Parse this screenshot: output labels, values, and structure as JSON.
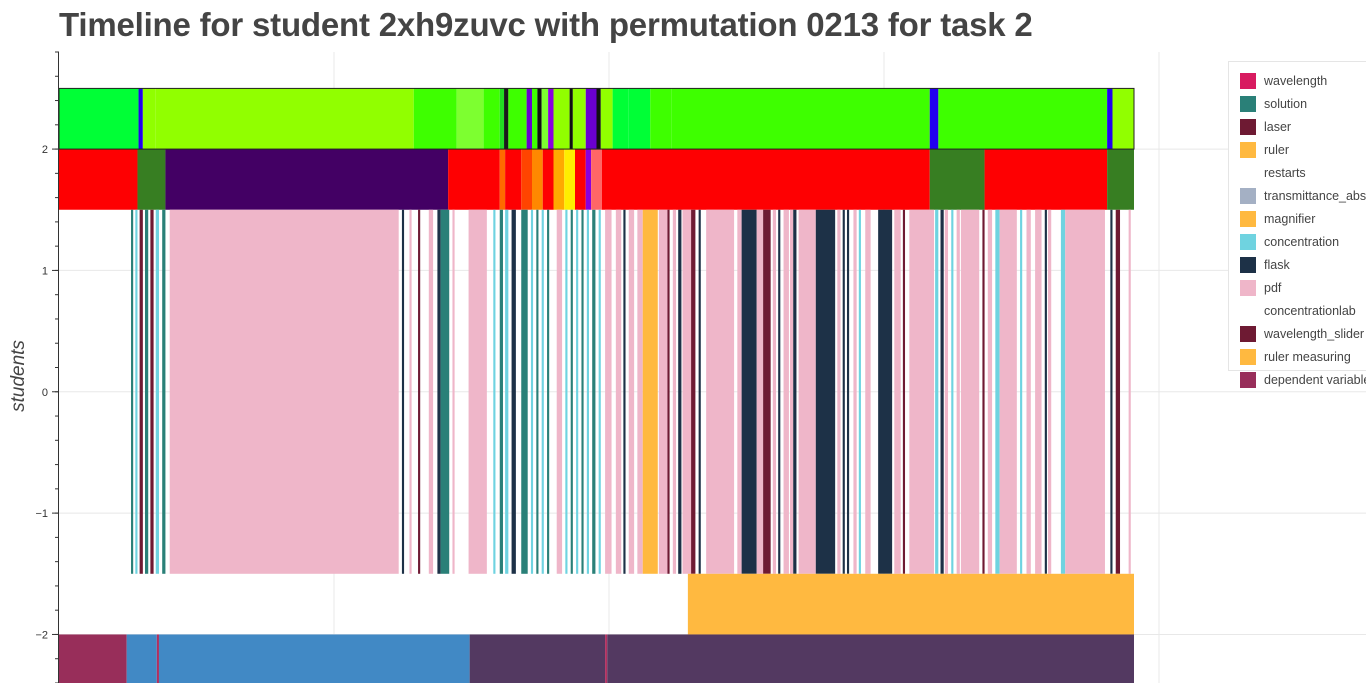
{
  "title": "Timeline for student 2xh9zuvc with permutation 0213 for task 2",
  "chart_data": {
    "type": "timeline",
    "title": "Timeline for student 2xh9zuvc with permutation 0213 for task 2",
    "xlabel": "",
    "ylabel": "students",
    "x_range": [
      0,
      100
    ],
    "ylim": [
      -2.4,
      2.8
    ],
    "y_ticks": [
      {
        "value": 2,
        "label": "2"
      },
      {
        "value": 1,
        "label": "1"
      },
      {
        "value": 0,
        "label": "0"
      },
      {
        "value": -1,
        "label": "−1"
      },
      {
        "value": -2,
        "label": "−2"
      }
    ],
    "grid": true,
    "legend_position": "right",
    "legend": [
      {
        "label": "wavelength",
        "color": "#d81b60"
      },
      {
        "label": "solution",
        "color": "#2a8078"
      },
      {
        "label": "laser",
        "color": "#6e1a33"
      },
      {
        "label": "ruler",
        "color": "#ffb940"
      },
      {
        "label": "restarts",
        "color": "#ffffff"
      },
      {
        "label": "transmittance_abs",
        "color": "#a4b0c4"
      },
      {
        "label": "magnifier",
        "color": "#ffb940"
      },
      {
        "label": "concentration",
        "color": "#6fd3e0"
      },
      {
        "label": "flask",
        "color": "#1d3147"
      },
      {
        "label": "pdf",
        "color": "#efb6c9"
      },
      {
        "label": "concentrationlab",
        "color": "#ffffff"
      },
      {
        "label": "wavelength_slider",
        "color": "#6e1a33"
      },
      {
        "label": "ruler measuring",
        "color": "#ffb940"
      },
      {
        "label": "dependent variable",
        "color": "#982e5a"
      }
    ],
    "rows": [
      {
        "y": [
          2,
          2.5
        ],
        "segments": [
          {
            "start": 0,
            "end": 7.4,
            "color": "#00ff36"
          },
          {
            "start": 7.4,
            "end": 7.8,
            "color": "#2200ee"
          },
          {
            "start": 7.8,
            "end": 9.0,
            "color": "#90ff00"
          },
          {
            "start": 9.0,
            "end": 33.0,
            "color": "#91ff00"
          },
          {
            "start": 33.0,
            "end": 37.0,
            "color": "#3eff00"
          },
          {
            "start": 37.0,
            "end": 39.5,
            "color": "#7dff30"
          },
          {
            "start": 39.5,
            "end": 41.0,
            "color": "#3eff00"
          },
          {
            "start": 41.0,
            "end": 41.4,
            "color": "#22dd22"
          },
          {
            "start": 41.4,
            "end": 41.8,
            "color": "#1a1a1a"
          },
          {
            "start": 41.8,
            "end": 43.5,
            "color": "#3eff00"
          },
          {
            "start": 43.5,
            "end": 44.0,
            "color": "#6a00d0"
          },
          {
            "start": 44.0,
            "end": 44.5,
            "color": "#3eff00"
          },
          {
            "start": 44.5,
            "end": 44.9,
            "color": "#111111"
          },
          {
            "start": 44.9,
            "end": 45.5,
            "color": "#7dff30"
          },
          {
            "start": 45.5,
            "end": 46.0,
            "color": "#8a00dd"
          },
          {
            "start": 46.0,
            "end": 47.5,
            "color": "#91ff00"
          },
          {
            "start": 47.5,
            "end": 47.8,
            "color": "#111111"
          },
          {
            "start": 47.8,
            "end": 49.0,
            "color": "#91ff00"
          },
          {
            "start": 49.0,
            "end": 50.0,
            "color": "#6a00d0"
          },
          {
            "start": 50.0,
            "end": 50.4,
            "color": "#111111"
          },
          {
            "start": 50.4,
            "end": 51.5,
            "color": "#91ff00"
          },
          {
            "start": 51.5,
            "end": 53.0,
            "color": "#00ff36"
          },
          {
            "start": 53.0,
            "end": 55.0,
            "color": "#00ff36"
          },
          {
            "start": 55.0,
            "end": 57.0,
            "color": "#3eff00"
          },
          {
            "start": 57.0,
            "end": 81.0,
            "color": "#3eff00"
          },
          {
            "start": 81.0,
            "end": 81.8,
            "color": "#2200ee"
          },
          {
            "start": 81.8,
            "end": 86.0,
            "color": "#3eff00"
          },
          {
            "start": 86.0,
            "end": 97.5,
            "color": "#3eff00"
          },
          {
            "start": 97.5,
            "end": 98.0,
            "color": "#2200ee"
          },
          {
            "start": 98.0,
            "end": 100,
            "color": "#91ff00"
          }
        ]
      },
      {
        "y": [
          1.5,
          2
        ],
        "segments": [
          {
            "start": 0,
            "end": 7.3,
            "color": "#fe0002"
          },
          {
            "start": 7.3,
            "end": 9.9,
            "color": "#377e22"
          },
          {
            "start": 9.9,
            "end": 36.2,
            "color": "#430064"
          },
          {
            "start": 36.2,
            "end": 41.0,
            "color": "#fe0002"
          },
          {
            "start": 41.0,
            "end": 41.5,
            "color": "#ff6a00"
          },
          {
            "start": 41.5,
            "end": 43.0,
            "color": "#fe0002"
          },
          {
            "start": 43.0,
            "end": 44.0,
            "color": "#ff4400"
          },
          {
            "start": 44.0,
            "end": 45.0,
            "color": "#ff8800"
          },
          {
            "start": 45.0,
            "end": 46.0,
            "color": "#fe0002"
          },
          {
            "start": 46.0,
            "end": 47.0,
            "color": "#ffaa00"
          },
          {
            "start": 47.0,
            "end": 48.0,
            "color": "#ffee00"
          },
          {
            "start": 48.0,
            "end": 49.0,
            "color": "#fe0002"
          },
          {
            "start": 49.0,
            "end": 49.5,
            "color": "#8a00dd"
          },
          {
            "start": 49.5,
            "end": 50.5,
            "color": "#ff6666"
          },
          {
            "start": 50.5,
            "end": 81.0,
            "color": "#fe0002"
          },
          {
            "start": 81.0,
            "end": 86.1,
            "color": "#377e22"
          },
          {
            "start": 86.1,
            "end": 97.5,
            "color": "#fe0002"
          },
          {
            "start": 97.5,
            "end": 100,
            "color": "#377e22"
          }
        ]
      },
      {
        "y": [
          -1.5,
          1.5
        ],
        "segments": [
          {
            "start": 6.7,
            "end": 6.9,
            "color": "#2a8078"
          },
          {
            "start": 7.1,
            "end": 7.3,
            "color": "#6fd3e0"
          },
          {
            "start": 7.5,
            "end": 7.8,
            "color": "#6e1a33"
          },
          {
            "start": 8.0,
            "end": 8.3,
            "color": "#2a8078"
          },
          {
            "start": 8.5,
            "end": 8.8,
            "color": "#6e1a33"
          },
          {
            "start": 9.0,
            "end": 9.3,
            "color": "#6fd3e0"
          },
          {
            "start": 9.6,
            "end": 9.9,
            "color": "#2a8078"
          },
          {
            "start": 10.3,
            "end": 31.6,
            "color": "#efb6c9"
          },
          {
            "start": 31.9,
            "end": 32.1,
            "color": "#1d3147"
          },
          {
            "start": 32.6,
            "end": 32.8,
            "color": "#efb6c9"
          },
          {
            "start": 33.4,
            "end": 33.6,
            "color": "#6e1a33"
          },
          {
            "start": 34.4,
            "end": 34.8,
            "color": "#efb6c9"
          },
          {
            "start": 35.2,
            "end": 35.5,
            "color": "#1d3147"
          },
          {
            "start": 35.5,
            "end": 36.3,
            "color": "#2a8078"
          },
          {
            "start": 36.6,
            "end": 36.8,
            "color": "#efb6c9"
          },
          {
            "start": 38.1,
            "end": 39.8,
            "color": "#efb6c9"
          },
          {
            "start": 40.4,
            "end": 40.6,
            "color": "#6fd3e0"
          },
          {
            "start": 41.0,
            "end": 41.3,
            "color": "#2a8078"
          },
          {
            "start": 41.5,
            "end": 41.8,
            "color": "#6fd3e0"
          },
          {
            "start": 42.1,
            "end": 42.5,
            "color": "#1d3147"
          },
          {
            "start": 43.0,
            "end": 43.6,
            "color": "#2a8078"
          },
          {
            "start": 43.9,
            "end": 44.1,
            "color": "#6fd3e0"
          },
          {
            "start": 44.4,
            "end": 44.6,
            "color": "#2a8078"
          },
          {
            "start": 44.9,
            "end": 45.1,
            "color": "#6fd3e0"
          },
          {
            "start": 45.4,
            "end": 45.6,
            "color": "#2a8078"
          },
          {
            "start": 46.3,
            "end": 46.8,
            "color": "#efb6c9"
          },
          {
            "start": 47.1,
            "end": 47.3,
            "color": "#6fd3e0"
          },
          {
            "start": 47.6,
            "end": 47.8,
            "color": "#2a8078"
          },
          {
            "start": 48.1,
            "end": 48.3,
            "color": "#6fd3e0"
          },
          {
            "start": 48.6,
            "end": 48.8,
            "color": "#2a8078"
          },
          {
            "start": 49.1,
            "end": 49.3,
            "color": "#6fd3e0"
          },
          {
            "start": 49.6,
            "end": 49.9,
            "color": "#2a8078"
          },
          {
            "start": 50.2,
            "end": 50.4,
            "color": "#6fd3e0"
          },
          {
            "start": 50.8,
            "end": 51.4,
            "color": "#efb6c9"
          },
          {
            "start": 51.8,
            "end": 52.3,
            "color": "#efb6c9"
          },
          {
            "start": 52.5,
            "end": 52.7,
            "color": "#1d3147"
          },
          {
            "start": 53.0,
            "end": 53.5,
            "color": "#efb6c9"
          },
          {
            "start": 53.8,
            "end": 54.3,
            "color": "#efb6c9"
          },
          {
            "start": 54.3,
            "end": 55.7,
            "color": "#ffb940"
          },
          {
            "start": 55.8,
            "end": 56.6,
            "color": "#efb6c9"
          },
          {
            "start": 56.6,
            "end": 56.8,
            "color": "#6e1a33"
          },
          {
            "start": 57.1,
            "end": 57.4,
            "color": "#efb6c9"
          },
          {
            "start": 57.6,
            "end": 57.9,
            "color": "#1d3147"
          },
          {
            "start": 58.0,
            "end": 58.8,
            "color": "#efb6c9"
          },
          {
            "start": 58.8,
            "end": 59.2,
            "color": "#6e1a33"
          },
          {
            "start": 59.5,
            "end": 59.7,
            "color": "#1d3147"
          },
          {
            "start": 60.2,
            "end": 62.8,
            "color": "#efb6c9"
          },
          {
            "start": 63.1,
            "end": 63.5,
            "color": "#efb6c9"
          },
          {
            "start": 63.5,
            "end": 64.9,
            "color": "#1d3147"
          },
          {
            "start": 64.9,
            "end": 65.5,
            "color": "#efb6c9"
          },
          {
            "start": 65.5,
            "end": 66.2,
            "color": "#6e1a33"
          },
          {
            "start": 66.4,
            "end": 66.7,
            "color": "#efb6c9"
          },
          {
            "start": 66.9,
            "end": 67.1,
            "color": "#1d3147"
          },
          {
            "start": 67.4,
            "end": 67.9,
            "color": "#efb6c9"
          },
          {
            "start": 68.0,
            "end": 68.3,
            "color": "#efb6c9"
          },
          {
            "start": 68.3,
            "end": 68.6,
            "color": "#1d3147"
          },
          {
            "start": 68.8,
            "end": 70.4,
            "color": "#efb6c9"
          },
          {
            "start": 70.4,
            "end": 72.2,
            "color": "#1d3147"
          },
          {
            "start": 72.4,
            "end": 72.7,
            "color": "#efb6c9"
          },
          {
            "start": 72.9,
            "end": 73.1,
            "color": "#1d3147"
          },
          {
            "start": 73.3,
            "end": 73.5,
            "color": "#1d3147"
          },
          {
            "start": 73.9,
            "end": 74.2,
            "color": "#efb6c9"
          },
          {
            "start": 74.4,
            "end": 74.6,
            "color": "#6fd3e0"
          },
          {
            "start": 75.0,
            "end": 75.5,
            "color": "#efb6c9"
          },
          {
            "start": 76.2,
            "end": 77.5,
            "color": "#1d3147"
          },
          {
            "start": 77.7,
            "end": 78.3,
            "color": "#efb6c9"
          },
          {
            "start": 78.5,
            "end": 78.7,
            "color": "#6e1a33"
          },
          {
            "start": 79.1,
            "end": 81.4,
            "color": "#efb6c9"
          },
          {
            "start": 81.5,
            "end": 81.8,
            "color": "#6fd3e0"
          },
          {
            "start": 82.0,
            "end": 82.3,
            "color": "#1d3147"
          },
          {
            "start": 82.4,
            "end": 82.7,
            "color": "#efb6c9"
          },
          {
            "start": 83.0,
            "end": 83.2,
            "color": "#6fd3e0"
          },
          {
            "start": 83.5,
            "end": 83.8,
            "color": "#efb6c9"
          },
          {
            "start": 83.9,
            "end": 85.6,
            "color": "#efb6c9"
          },
          {
            "start": 85.9,
            "end": 86.1,
            "color": "#6e1a33"
          },
          {
            "start": 86.4,
            "end": 86.8,
            "color": "#efb6c9"
          },
          {
            "start": 87.1,
            "end": 87.5,
            "color": "#6fd3e0"
          },
          {
            "start": 87.5,
            "end": 89.1,
            "color": "#efb6c9"
          },
          {
            "start": 89.4,
            "end": 89.6,
            "color": "#6fd3e0"
          },
          {
            "start": 90.0,
            "end": 90.4,
            "color": "#efb6c9"
          },
          {
            "start": 90.8,
            "end": 91.4,
            "color": "#efb6c9"
          },
          {
            "start": 91.7,
            "end": 91.9,
            "color": "#1d3147"
          },
          {
            "start": 92.0,
            "end": 92.3,
            "color": "#efb6c9"
          },
          {
            "start": 93.2,
            "end": 93.6,
            "color": "#6fd3e0"
          },
          {
            "start": 93.6,
            "end": 97.3,
            "color": "#efb6c9"
          },
          {
            "start": 97.8,
            "end": 98.0,
            "color": "#1d3147"
          },
          {
            "start": 98.3,
            "end": 98.7,
            "color": "#6e1a33"
          },
          {
            "start": 99.5,
            "end": 99.7,
            "color": "#efb6c9"
          }
        ]
      },
      {
        "y": [
          -2,
          -1.5
        ],
        "segments": [
          {
            "start": 58.5,
            "end": 100,
            "color": "#ffb940"
          }
        ]
      },
      {
        "y": [
          -2.4,
          -2
        ],
        "segments": [
          {
            "start": 0,
            "end": 6.3,
            "color": "#982e5a"
          },
          {
            "start": 6.3,
            "end": 9.1,
            "color": "#4189c5"
          },
          {
            "start": 9.1,
            "end": 9.3,
            "color": "#b03060"
          },
          {
            "start": 9.3,
            "end": 38.2,
            "color": "#4189c5"
          },
          {
            "start": 38.2,
            "end": 50.8,
            "color": "#533961"
          },
          {
            "start": 50.8,
            "end": 51.0,
            "color": "#b03060"
          },
          {
            "start": 51.0,
            "end": 100,
            "color": "#533961"
          }
        ]
      }
    ]
  }
}
